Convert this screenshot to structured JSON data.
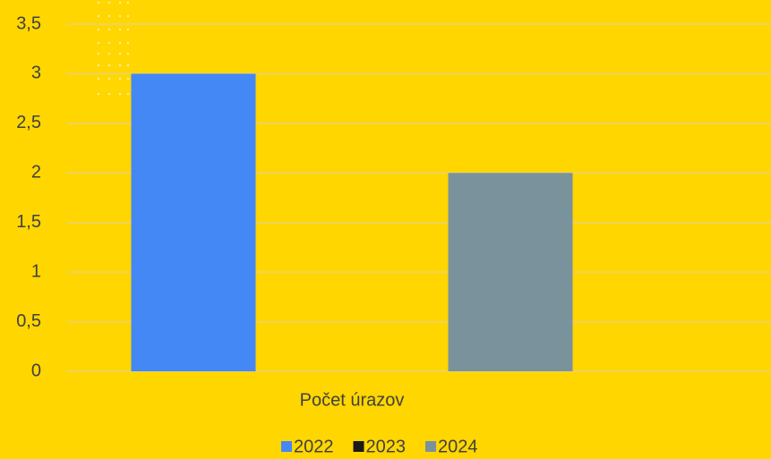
{
  "chart_data": {
    "type": "bar",
    "categories": [
      "Počet úrazov"
    ],
    "series": [
      {
        "name": "2022",
        "color": "#4488f5",
        "values": [
          3
        ]
      },
      {
        "name": "2023",
        "color": "#1a1a1a",
        "values": [
          0
        ]
      },
      {
        "name": "2024",
        "color": "#7a929c",
        "values": [
          2
        ]
      }
    ],
    "ylim": [
      0,
      3.5
    ],
    "yticks": [
      0,
      {
        "value": 0.5,
        "label": "0,5"
      },
      1,
      {
        "value": 1.5,
        "label": "1,5"
      },
      2,
      {
        "value": 2.5,
        "label": "2,5"
      },
      3,
      {
        "value": 3.5,
        "label": "3,5"
      }
    ],
    "grid": true,
    "legend": "bottom"
  }
}
